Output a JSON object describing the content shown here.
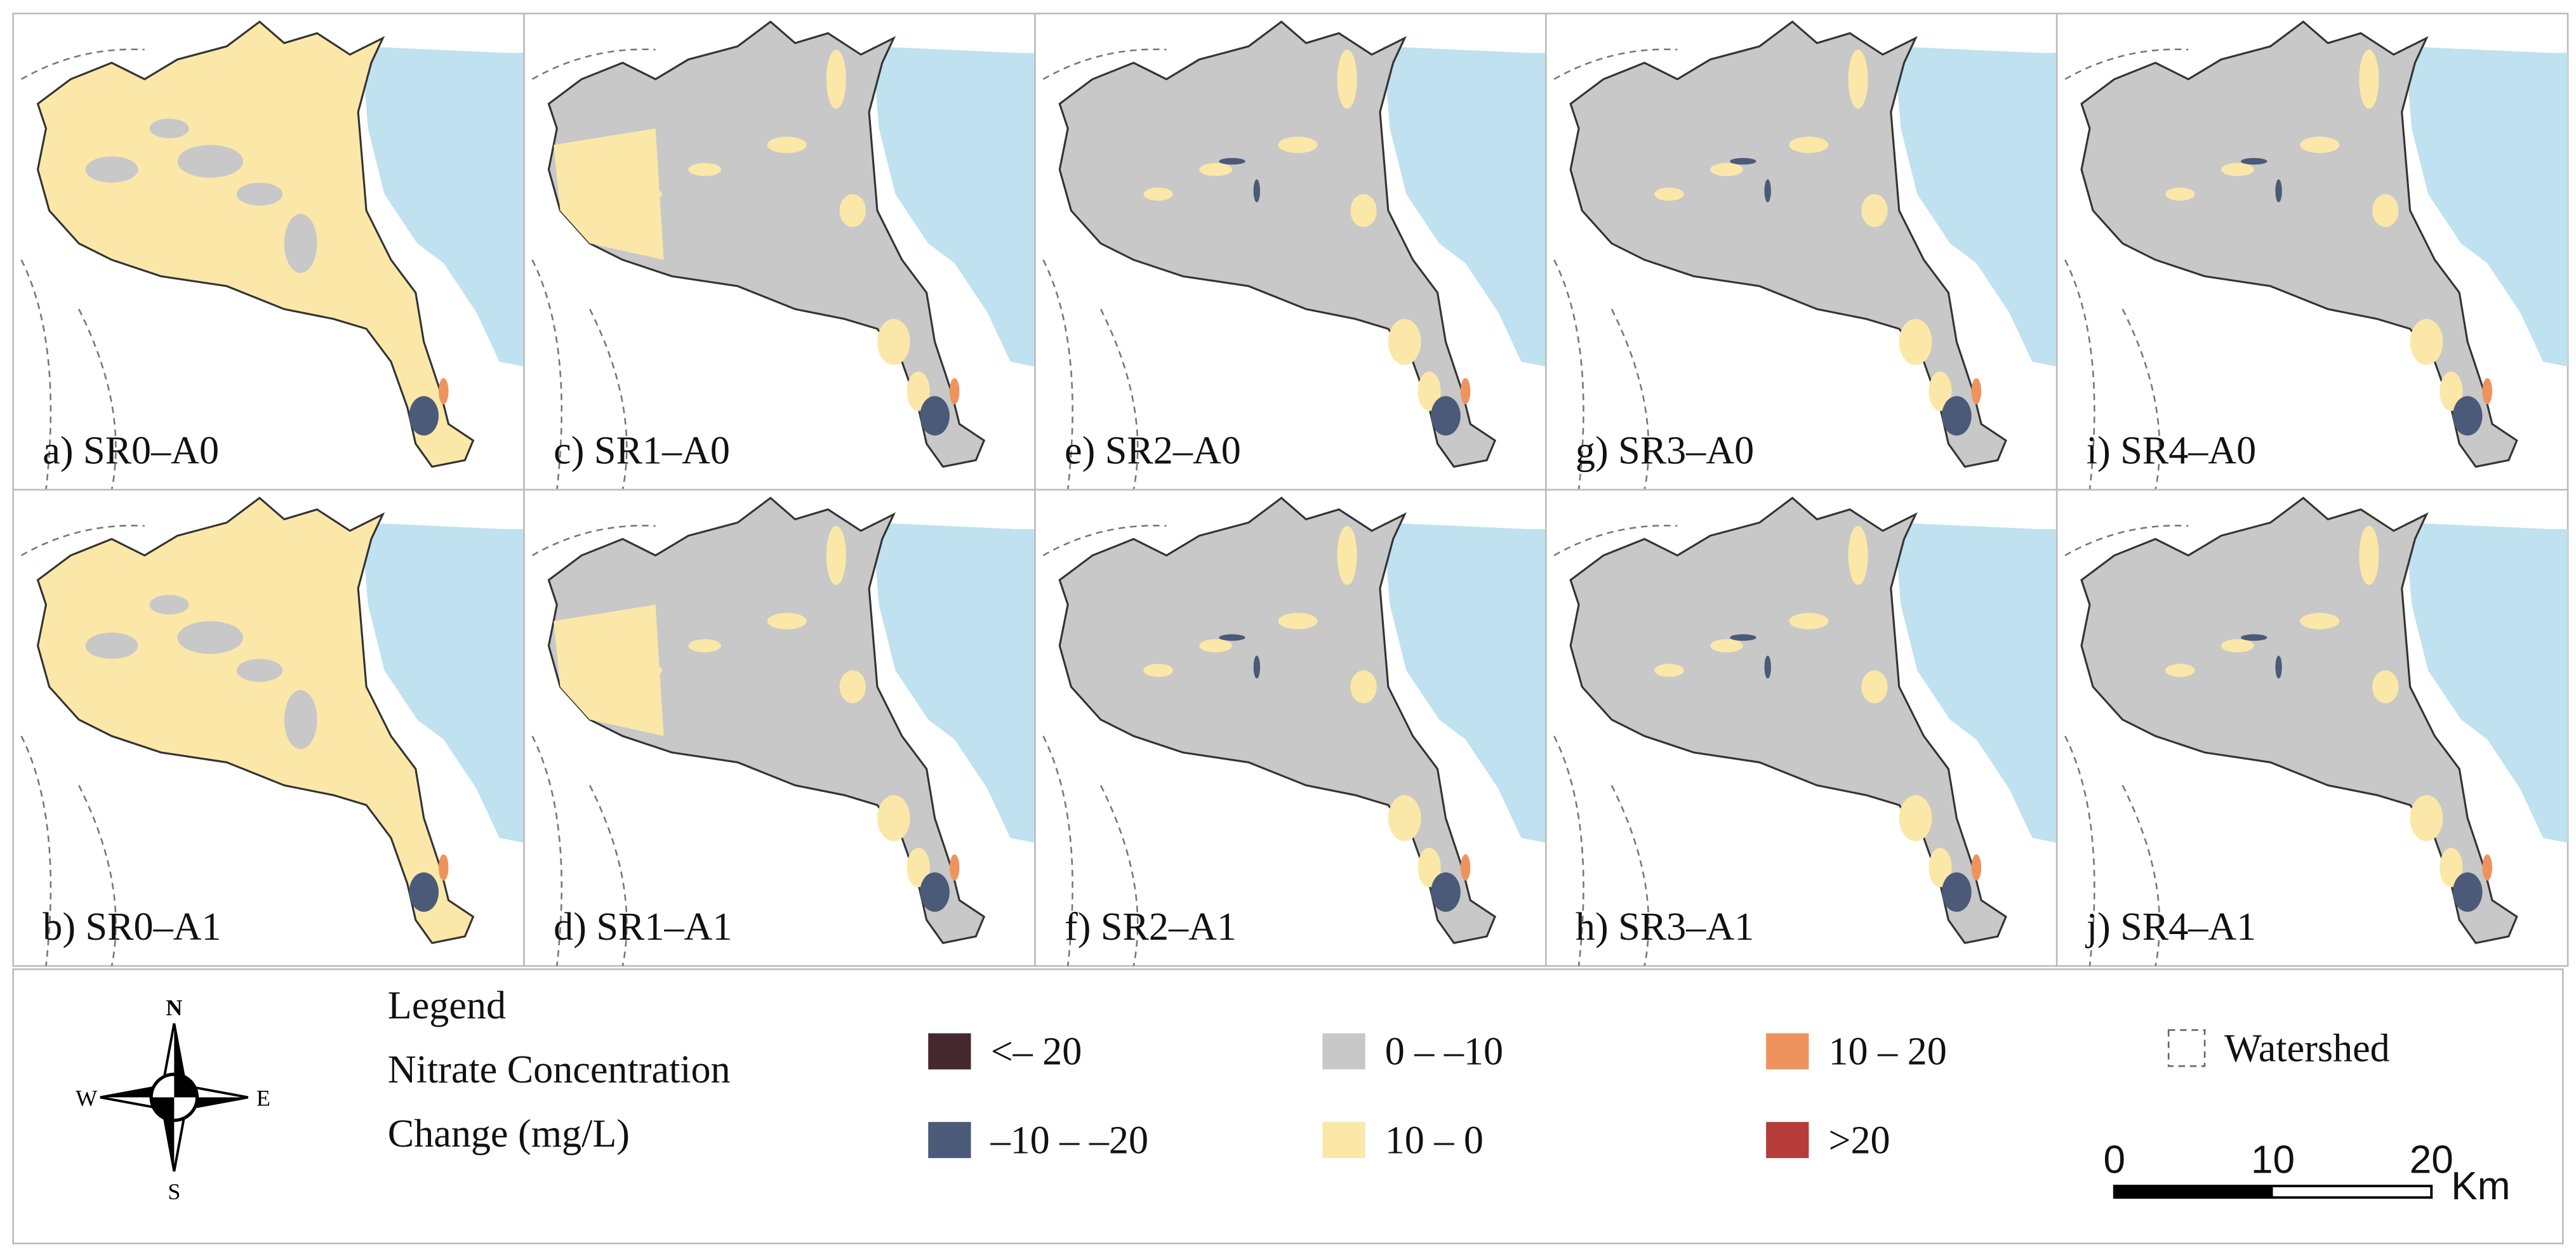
{
  "panels": [
    {
      "label": "a) SR0–A0",
      "base": "#fbe8a8"
    },
    {
      "label": "b) SR0–A1",
      "base": "#fbe8a8"
    },
    {
      "label": "c) SR1–A0",
      "base": "#c8c8c8"
    },
    {
      "label": "d) SR1–A1",
      "base": "#c8c8c8"
    },
    {
      "label": "e) SR2–A0",
      "base": "#c8c8c8"
    },
    {
      "label": "f) SR2–A1",
      "base": "#c8c8c8"
    },
    {
      "label": "g) SR3–A0",
      "base": "#c8c8c8"
    },
    {
      "label": "h) SR3–A1",
      "base": "#c8c8c8"
    },
    {
      "label": "i) SR4–A0",
      "base": "#c8c8c8"
    },
    {
      "label": "j) SR4–A1",
      "base": "#c8c8c8"
    }
  ],
  "legend": {
    "title": [
      "Legend",
      "Nitrate Concentration",
      "Change (mg/L)"
    ],
    "items": [
      {
        "label": "<– 20",
        "color": "#45282d"
      },
      {
        "label": "–10 – –20",
        "color": "#4a5a78"
      },
      {
        "label": "0 – –10",
        "color": "#c8c8c8"
      },
      {
        "label": "10 – 0",
        "color": "#fbe8a8"
      },
      {
        "label": "10 – 20",
        "color": "#ef935e"
      },
      {
        "label": ">20",
        "color": "#b63c3a"
      }
    ],
    "watershed": "Watershed"
  },
  "compass": {
    "n": "N",
    "e": "E",
    "s": "S",
    "w": "W"
  },
  "scale_bar": {
    "ticks": [
      0,
      10,
      20
    ],
    "unit": "Km"
  }
}
